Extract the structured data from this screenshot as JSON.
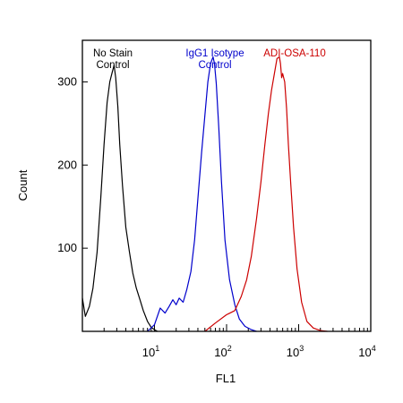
{
  "chart_data": {
    "type": "line",
    "xlabel": "FL1",
    "ylabel": "Count",
    "x_scale": "log",
    "xlim": [
      1,
      10000
    ],
    "ylim": [
      0,
      350
    ],
    "grid": false,
    "y_ticks": [
      {
        "value": 100,
        "label": "100"
      },
      {
        "value": 200,
        "label": "200"
      },
      {
        "value": 300,
        "label": "300"
      }
    ],
    "x_ticks": [
      {
        "value": 10,
        "base": "10",
        "exp": "1"
      },
      {
        "value": 100,
        "base": "10",
        "exp": "2"
      },
      {
        "value": 1000,
        "base": "10",
        "exp": "3"
      },
      {
        "value": 10000,
        "base": "10",
        "exp": "4"
      }
    ],
    "series": [
      {
        "name_lines": [
          "No Stain",
          "Control"
        ],
        "color": "#000000",
        "x": [
          1.0,
          1.1,
          1.25,
          1.4,
          1.6,
          1.8,
          2.0,
          2.2,
          2.4,
          2.6,
          2.75,
          2.9,
          3.1,
          3.3,
          3.6,
          4.0,
          4.5,
          5.0,
          5.6,
          6.3,
          7.0,
          8.0,
          9.0,
          10,
          11
        ],
        "y": [
          40,
          18,
          30,
          52,
          95,
          160,
          225,
          275,
          300,
          312,
          320,
          305,
          270,
          225,
          175,
          125,
          95,
          70,
          52,
          38,
          25,
          12,
          5,
          2,
          0
        ]
      },
      {
        "name_lines": [
          "IgG1 Isotype",
          "Control"
        ],
        "color": "#0000cc",
        "x": [
          8,
          10,
          12,
          14,
          16,
          18,
          20,
          22,
          25,
          28,
          32,
          36,
          40,
          45,
          50,
          55,
          60,
          65,
          68,
          72,
          78,
          85,
          95,
          110,
          130,
          150,
          180,
          220,
          260
        ],
        "y": [
          0,
          8,
          28,
          22,
          30,
          38,
          32,
          40,
          35,
          50,
          72,
          110,
          160,
          215,
          260,
          300,
          322,
          330,
          322,
          298,
          245,
          180,
          110,
          62,
          32,
          15,
          6,
          2,
          0
        ]
      },
      {
        "name_lines": [
          "ADI-OSA-110"
        ],
        "color": "#cc0000",
        "x": [
          50,
          70,
          100,
          130,
          160,
          190,
          220,
          260,
          300,
          340,
          380,
          420,
          460,
          500,
          540,
          560,
          580,
          600,
          640,
          680,
          720,
          780,
          850,
          950,
          1100,
          1300,
          1600,
          2000,
          2500
        ],
        "y": [
          0,
          10,
          20,
          25,
          42,
          62,
          90,
          135,
          180,
          225,
          262,
          290,
          310,
          328,
          330,
          322,
          305,
          310,
          300,
          268,
          225,
          175,
          125,
          75,
          35,
          12,
          4,
          1,
          0
        ]
      }
    ]
  }
}
